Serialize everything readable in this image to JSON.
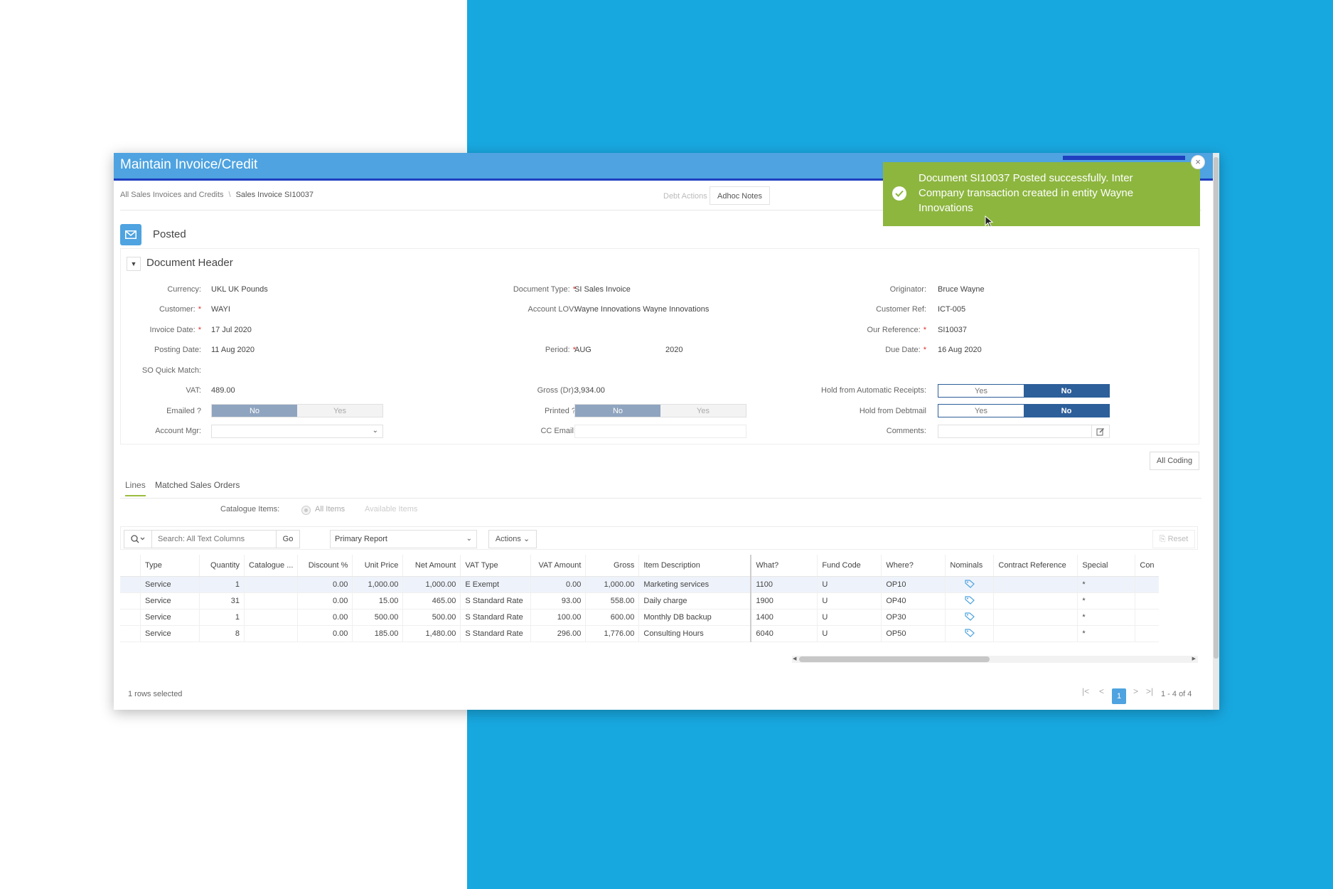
{
  "window": {
    "title": "Maintain Invoice/Credit"
  },
  "breadcrumb": {
    "parent": "All Sales Invoices and Credits",
    "current": "Sales Invoice SI10037"
  },
  "top_actions": {
    "debt_actions": "Debt Actions",
    "adhoc_notes": "Adhoc Notes"
  },
  "status": {
    "icon": "envelope-icon",
    "label": "Posted"
  },
  "header_section": {
    "title": "Document Header",
    "fields": {
      "currency": {
        "label": "Currency:",
        "value": "UKL UK Pounds"
      },
      "customer": {
        "label": "Customer:",
        "value": "WAYI"
      },
      "invoice_date": {
        "label": "Invoice Date:",
        "value": "17 Jul 2020"
      },
      "posting_date": {
        "label": "Posting Date:",
        "value": "11 Aug 2020"
      },
      "so_quick_match": {
        "label": "SO Quick Match:",
        "value": ""
      },
      "vat": {
        "label": "VAT:",
        "value": "489.00"
      },
      "emailed": {
        "label": "Emailed ?",
        "no": "No",
        "yes": "Yes",
        "selected": "No"
      },
      "account_mgr": {
        "label": "Account Mgr:",
        "value": ""
      },
      "document_type": {
        "label": "Document Type:",
        "value": "SI Sales Invoice"
      },
      "account_lov": {
        "label": "Account LOV:",
        "value": "Wayne Innovations Wayne Innovations"
      },
      "period": {
        "label": "Period:",
        "value": "AUG",
        "year": "2020"
      },
      "gross_dr": {
        "label": "Gross (Dr):",
        "value": "3,934.00"
      },
      "printed": {
        "label": "Printed ?",
        "no": "No",
        "yes": "Yes",
        "selected": "No"
      },
      "cc_email": {
        "label": "CC Email:",
        "value": ""
      },
      "originator": {
        "label": "Originator:",
        "value": "Bruce Wayne"
      },
      "customer_ref": {
        "label": "Customer Ref:",
        "value": "ICT-005"
      },
      "our_reference": {
        "label": "Our Reference:",
        "value": "SI10037"
      },
      "due_date": {
        "label": "Due Date:",
        "value": "16 Aug 2020"
      },
      "hold_auto_receipts": {
        "label": "Hold from Automatic Receipts:",
        "yes": "Yes",
        "no": "No",
        "selected": "No"
      },
      "hold_debtmail": {
        "label": "Hold from Debtmail",
        "yes": "Yes",
        "no": "No",
        "selected": "No"
      },
      "comments": {
        "label": "Comments:",
        "value": ""
      }
    }
  },
  "all_coding_button": "All Coding",
  "tabs": [
    {
      "label": "Lines",
      "active": true
    },
    {
      "label": "Matched Sales Orders",
      "active": false
    }
  ],
  "catalogue": {
    "label": "Catalogue Items:",
    "options": [
      "All Items",
      "Available Items"
    ]
  },
  "toolbar": {
    "search_placeholder": "Search: All Text Columns",
    "go": "Go",
    "report": "Primary Report",
    "actions": "Actions",
    "reset": "Reset"
  },
  "grid": {
    "columns": [
      "Type",
      "Quantity",
      "Catalogue ...",
      "Discount %",
      "Unit Price",
      "Net Amount",
      "VAT Type",
      "VAT Amount",
      "Gross",
      "Item Description",
      "What?",
      "Fund Code",
      "Where?",
      "Nominals",
      "Contract Reference",
      "Special",
      "Con"
    ],
    "rows": [
      {
        "type": "Service",
        "quantity": "1",
        "catalogue": "",
        "discount": "0.00",
        "unit_price": "1,000.00",
        "net": "1,000.00",
        "vat_type": "E Exempt",
        "vat_amount": "0.00",
        "gross": "1,000.00",
        "desc": "Marketing services",
        "what": "1100",
        "fund": "U",
        "where": "OP10",
        "contract": "",
        "special": "*"
      },
      {
        "type": "Service",
        "quantity": "31",
        "catalogue": "",
        "discount": "0.00",
        "unit_price": "15.00",
        "net": "465.00",
        "vat_type": "S Standard Rate",
        "vat_amount": "93.00",
        "gross": "558.00",
        "desc": "Daily charge",
        "what": "1900",
        "fund": "U",
        "where": "OP40",
        "contract": "",
        "special": "*"
      },
      {
        "type": "Service",
        "quantity": "1",
        "catalogue": "",
        "discount": "0.00",
        "unit_price": "500.00",
        "net": "500.00",
        "vat_type": "S Standard Rate",
        "vat_amount": "100.00",
        "gross": "600.00",
        "desc": "Monthly DB backup",
        "what": "1400",
        "fund": "U",
        "where": "OP30",
        "contract": "",
        "special": "*"
      },
      {
        "type": "Service",
        "quantity": "8",
        "catalogue": "",
        "discount": "0.00",
        "unit_price": "185.00",
        "net": "1,480.00",
        "vat_type": "S Standard Rate",
        "vat_amount": "296.00",
        "gross": "1,776.00",
        "desc": "Consulting Hours",
        "what": "6040",
        "fund": "U",
        "where": "OP50",
        "contract": "",
        "special": "*"
      }
    ]
  },
  "footer": {
    "selected": "1 rows selected",
    "page": "1",
    "count": "1 - 4 of 4"
  },
  "toast": {
    "message": "Document SI10037 Posted successfully. Inter Company transaction created in entity Wayne Innovations",
    "close": "×"
  },
  "colors": {
    "background_accent": "#18a8e0",
    "titlebar": "#4ea3e0",
    "toast": "#8db63f",
    "toggle_selected": "#2d5f9a"
  }
}
